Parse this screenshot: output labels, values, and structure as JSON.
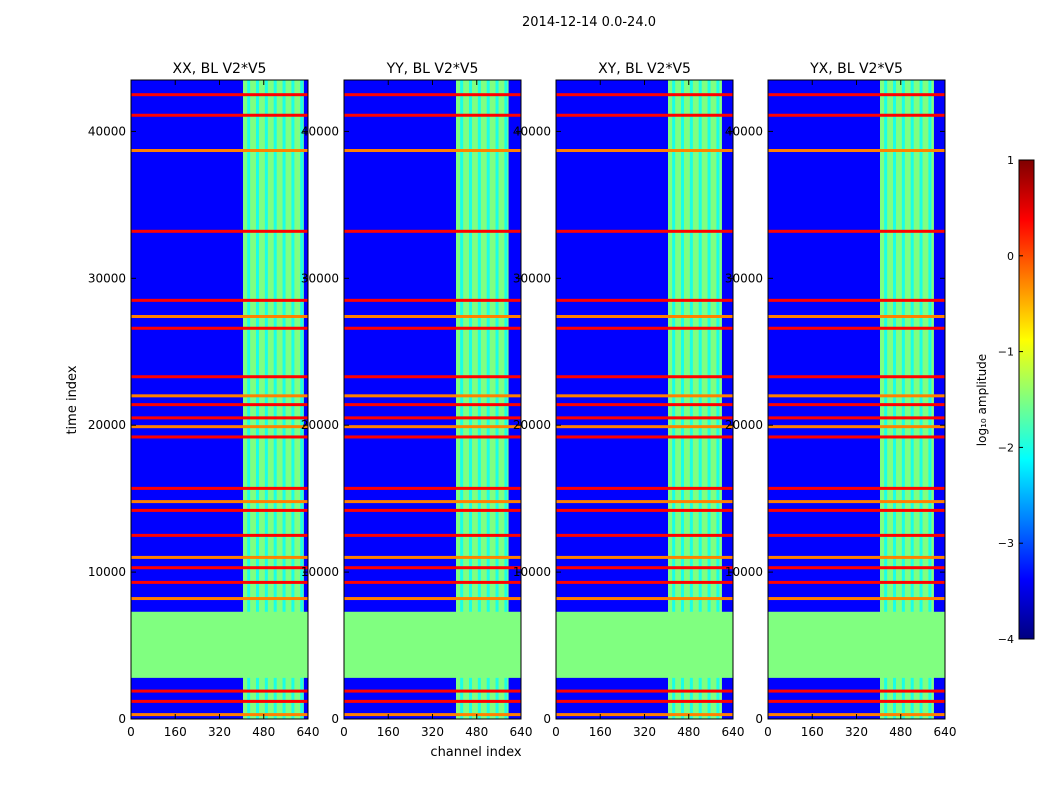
{
  "figure": {
    "suptitle": "2014-12-14 0.0-24.0",
    "xlabel": "channel index",
    "ylabel": "time index"
  },
  "colorbar": {
    "label": "log₁₀ amplitude",
    "ticks": [
      1,
      0,
      -1,
      -2,
      -3,
      -4
    ],
    "tick_labels": [
      "1",
      "0",
      "−1",
      "−2",
      "−3",
      "−4"
    ],
    "range": [
      -4,
      1
    ],
    "colormap": "jet",
    "colors": [
      "#00007f",
      "#0000ff",
      "#0080ff",
      "#00ffff",
      "#80ff80",
      "#ffff00",
      "#ff8000",
      "#ff0000",
      "#7f0000"
    ]
  },
  "chart_data": [
    {
      "type": "heatmap",
      "title": "XX, BL V2*V5",
      "xlim": [
        0,
        640
      ],
      "ylim": [
        0,
        43500
      ],
      "xticks": [
        0,
        160,
        320,
        480,
        640
      ],
      "yticks": [
        0,
        10000,
        20000,
        30000,
        40000
      ],
      "ytick_labels": [
        "0",
        "10000",
        "20000",
        "30000",
        "40000"
      ],
      "background_level": -3.1,
      "band_channels": [
        405,
        625
      ],
      "band_level": -1.2,
      "flagged_time_range": [
        2800,
        7300
      ],
      "flagged_level": -1.3,
      "rfi_times": [
        300,
        1200,
        1900,
        8200,
        9300,
        10300,
        11000,
        12500,
        14200,
        14800,
        15700,
        19200,
        19900,
        20500,
        21400,
        22000,
        23300,
        26600,
        27400,
        28500,
        33200,
        38700,
        41100,
        42500
      ]
    },
    {
      "type": "heatmap",
      "title": "YY, BL V2*V5",
      "xlim": [
        0,
        640
      ],
      "ylim": [
        0,
        43500
      ],
      "xticks": [
        0,
        160,
        320,
        480,
        640
      ],
      "yticks": [
        0,
        10000,
        20000,
        30000,
        40000
      ],
      "ytick_labels": [
        "0",
        "10000",
        "20000",
        "30000",
        "40000"
      ],
      "background_level": -3.1,
      "band_channels": [
        405,
        595
      ],
      "band_level": -1.2,
      "flagged_time_range": [
        2800,
        7300
      ],
      "flagged_level": -1.3,
      "rfi_times": [
        300,
        1200,
        1900,
        8200,
        9300,
        10300,
        11000,
        12500,
        14200,
        14800,
        15700,
        19200,
        19900,
        20500,
        21400,
        22000,
        23300,
        26600,
        27400,
        28500,
        33200,
        38700,
        41100,
        42500
      ]
    },
    {
      "type": "heatmap",
      "title": "XY, BL V2*V5",
      "xlim": [
        0,
        640
      ],
      "ylim": [
        0,
        43500
      ],
      "xticks": [
        0,
        160,
        320,
        480,
        640
      ],
      "yticks": [
        0,
        10000,
        20000,
        30000,
        40000
      ],
      "ytick_labels": [
        "0",
        "10000",
        "20000",
        "30000",
        "40000"
      ],
      "background_level": -3.1,
      "band_channels": [
        405,
        600
      ],
      "band_level": -1.2,
      "flagged_time_range": [
        2800,
        7300
      ],
      "flagged_level": -1.3,
      "rfi_times": [
        300,
        1200,
        1900,
        8200,
        9300,
        10300,
        11000,
        12500,
        14200,
        14800,
        15700,
        19200,
        19900,
        20500,
        21400,
        22000,
        23300,
        26600,
        27400,
        28500,
        33200,
        38700,
        41100,
        42500
      ]
    },
    {
      "type": "heatmap",
      "title": "YX, BL V2*V5",
      "xlim": [
        0,
        640
      ],
      "ylim": [
        0,
        43500
      ],
      "xticks": [
        0,
        160,
        320,
        480,
        640
      ],
      "yticks": [
        0,
        10000,
        20000,
        30000,
        40000
      ],
      "ytick_labels": [
        "0",
        "10000",
        "20000",
        "30000",
        "40000"
      ],
      "background_level": -3.1,
      "band_channels": [
        405,
        600
      ],
      "band_level": -1.2,
      "flagged_time_range": [
        2800,
        7300
      ],
      "flagged_level": -1.3,
      "rfi_times": [
        300,
        1200,
        1900,
        8200,
        9300,
        10300,
        11000,
        12500,
        14200,
        14800,
        15700,
        19200,
        19900,
        20500,
        21400,
        22000,
        23300,
        26600,
        27400,
        28500,
        33200,
        38700,
        41100,
        42500
      ]
    }
  ]
}
